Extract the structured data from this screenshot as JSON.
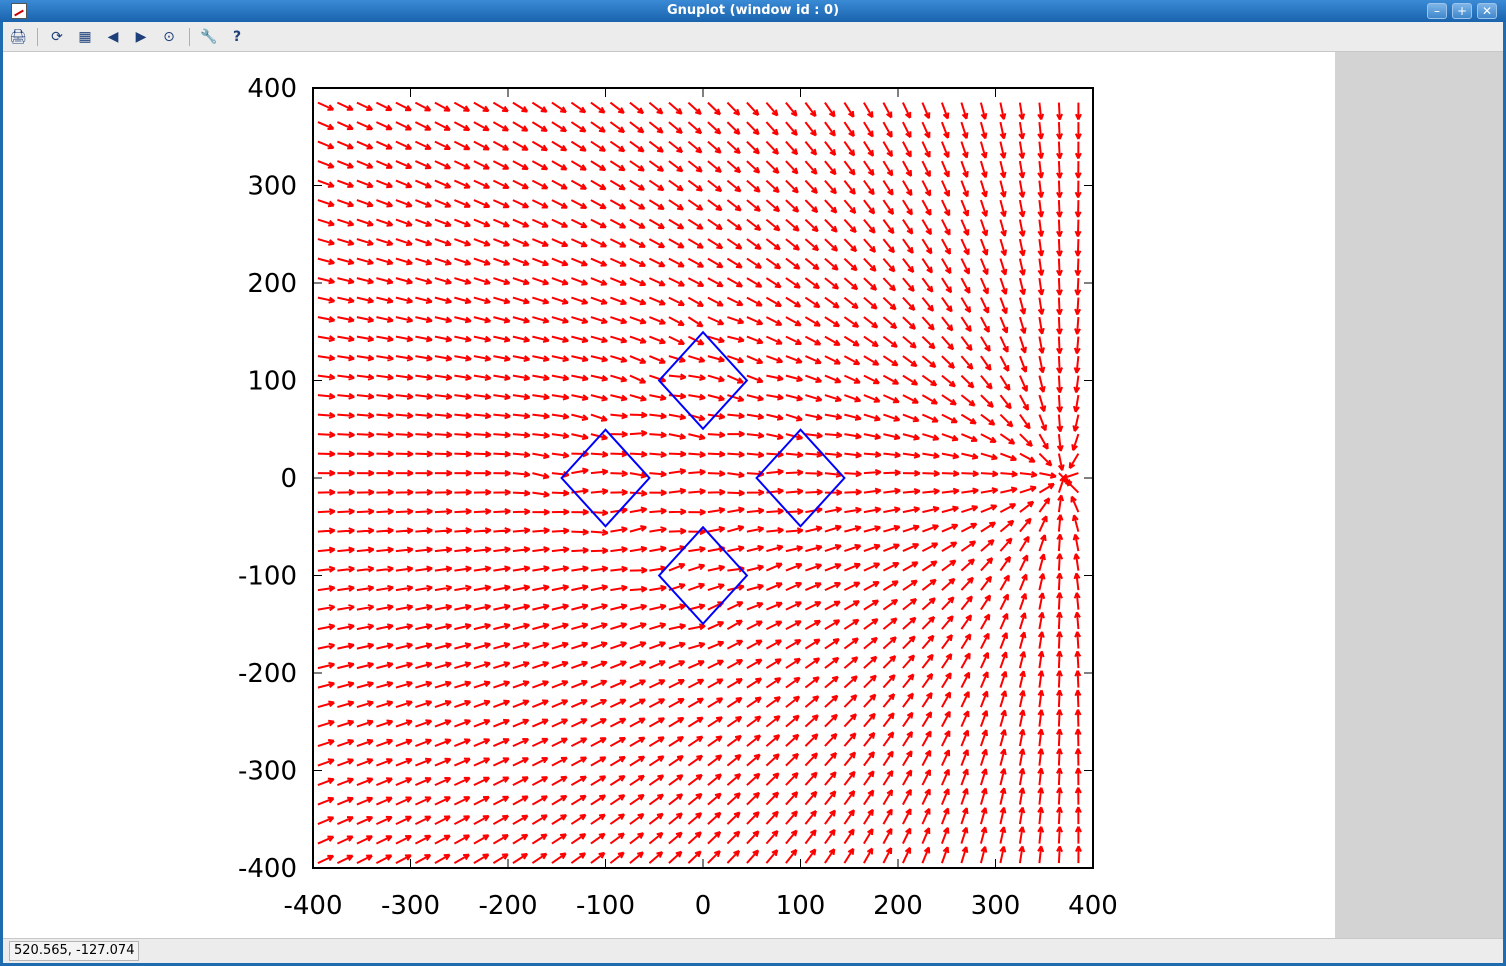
{
  "window": {
    "title": "Gnuplot (window id : 0)"
  },
  "window_buttons": {
    "minimize": "–",
    "maximize": "+",
    "close": "✕"
  },
  "toolbar": [
    {
      "name": "export-icon",
      "glyph": "🖨"
    },
    {
      "name": "replot-icon",
      "glyph": "⟳"
    },
    {
      "name": "grid-icon",
      "glyph": "▦"
    },
    {
      "name": "zoom-previous-icon",
      "glyph": "◀"
    },
    {
      "name": "zoom-next-icon",
      "glyph": "▶"
    },
    {
      "name": "autoscale-icon",
      "glyph": "⊙"
    },
    {
      "name": "settings-icon",
      "glyph": "🔧"
    },
    {
      "name": "help-icon",
      "glyph": "?"
    }
  ],
  "status": {
    "coordinates": "520.565, -127.074"
  },
  "chart_data": {
    "type": "vector-field",
    "xlim": [
      -400,
      400
    ],
    "ylim": [
      -400,
      400
    ],
    "xticks": [
      "-400",
      "-300",
      "-200",
      "-100",
      "0",
      "100",
      "200",
      "300",
      "400"
    ],
    "yticks": [
      "400",
      "300",
      "200",
      "100",
      "0",
      "-100",
      "-200",
      "-300",
      "-400"
    ],
    "arrow_color": "#ff0000",
    "curve_color": "#0000ff",
    "sink_point": [
      370,
      0
    ],
    "vortex_centers": [
      [
        0,
        150
      ],
      [
        -50,
        100
      ],
      [
        50,
        100
      ],
      [
        0,
        50
      ],
      [
        -100,
        50
      ],
      [
        100,
        50
      ],
      [
        -150,
        0
      ],
      [
        -50,
        0
      ],
      [
        50,
        0
      ],
      [
        150,
        0
      ],
      [
        -100,
        -50
      ],
      [
        100,
        -50
      ],
      [
        0,
        -50
      ],
      [
        -50,
        -100
      ],
      [
        50,
        -100
      ],
      [
        0,
        -150
      ]
    ],
    "diamonds": [
      {
        "center": [
          0,
          100
        ],
        "half": 45
      },
      {
        "center": [
          -100,
          0
        ],
        "half": 45
      },
      {
        "center": [
          100,
          0
        ],
        "half": 45
      },
      {
        "center": [
          0,
          -100
        ],
        "half": 45
      }
    ]
  }
}
